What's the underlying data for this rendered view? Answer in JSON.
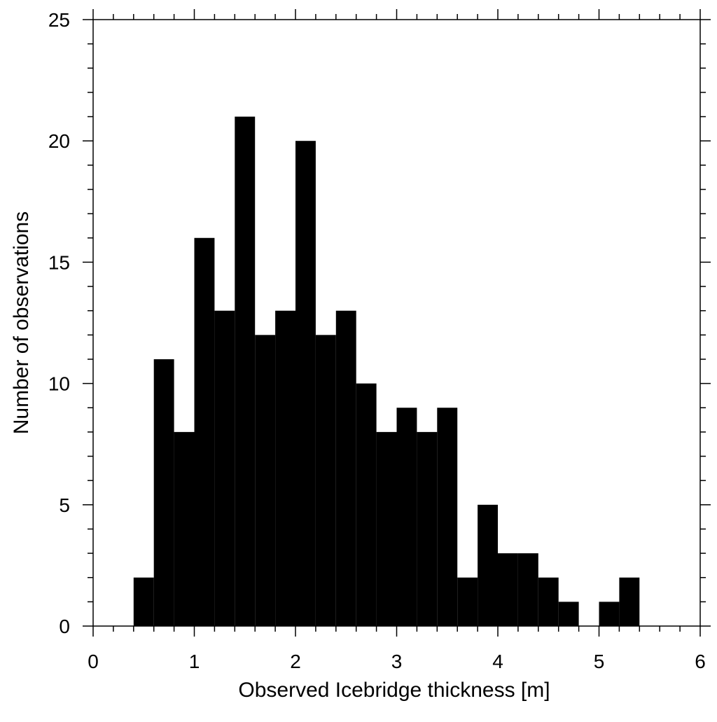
{
  "chart_data": {
    "type": "histogram",
    "xlabel": "Observed Icebridge thickness [m]",
    "ylabel": "Number of observations",
    "bins": [
      0.4,
      0.6,
      0.8,
      1.0,
      1.2,
      1.4,
      1.6,
      1.8,
      2.0,
      2.2,
      2.4,
      2.6,
      2.8,
      3.0,
      3.2,
      3.4,
      3.6,
      3.8,
      4.0,
      4.2,
      4.4,
      4.6,
      4.8,
      5.0,
      5.2,
      5.4
    ],
    "values": [
      2,
      11,
      8,
      16,
      13,
      21,
      12,
      13,
      20,
      12,
      13,
      10,
      8,
      9,
      8,
      9,
      2,
      5,
      3,
      3,
      2,
      1,
      0,
      1,
      2
    ],
    "color": "#000000",
    "xlim": [
      0,
      6
    ],
    "xticks": [
      0,
      1,
      2,
      3,
      4,
      5,
      6
    ],
    "ylim": [
      0,
      25
    ],
    "yticks": [
      0,
      5,
      10,
      15,
      20,
      25
    ]
  }
}
